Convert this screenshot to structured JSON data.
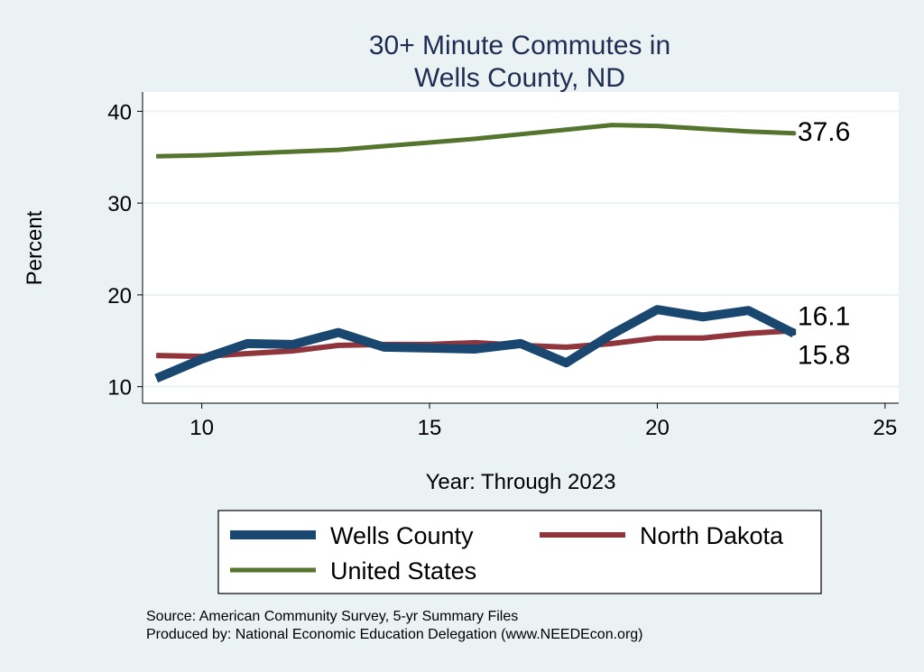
{
  "chart_data": {
    "type": "line",
    "title": [
      "30+ Minute Commutes in",
      "Wells County, ND"
    ],
    "xlabel": "Year: Through 2023",
    "ylabel": "Percent",
    "xlim": [
      8.7,
      25.3
    ],
    "ylim": [
      8.2,
      42.1
    ],
    "xticks": [
      10,
      15,
      20,
      25
    ],
    "yticks": [
      10,
      20,
      30,
      40
    ],
    "grid": true,
    "x": [
      9,
      10,
      11,
      12,
      13,
      14,
      15,
      16,
      17,
      18,
      19,
      20,
      21,
      22,
      23
    ],
    "series": [
      {
        "name": "Wells County",
        "color": "#1a476f",
        "values": [
          10.9,
          13.0,
          14.7,
          14.6,
          15.9,
          14.3,
          14.2,
          14.1,
          14.7,
          12.6,
          15.7,
          18.4,
          17.6,
          18.3,
          15.8
        ],
        "end_label": "15.8"
      },
      {
        "name": "North Dakota",
        "color": "#90353b",
        "values": [
          13.4,
          13.3,
          13.6,
          13.9,
          14.5,
          14.6,
          14.6,
          14.8,
          14.5,
          14.3,
          14.7,
          15.3,
          15.3,
          15.8,
          16.1
        ],
        "end_label": "16.1"
      },
      {
        "name": "United States",
        "color": "#55752f",
        "values": [
          35.1,
          35.2,
          35.4,
          35.6,
          35.8,
          36.2,
          36.6,
          37.0,
          37.5,
          38.0,
          38.5,
          38.4,
          38.1,
          37.8,
          37.6
        ],
        "end_label": "37.6"
      }
    ],
    "legend_position": "bottom",
    "notes": [
      "Source: American Community Survey, 5-yr Summary Files",
      "Produced by: National Economic Education Delegation (www.NEEDEcon.org)"
    ]
  }
}
